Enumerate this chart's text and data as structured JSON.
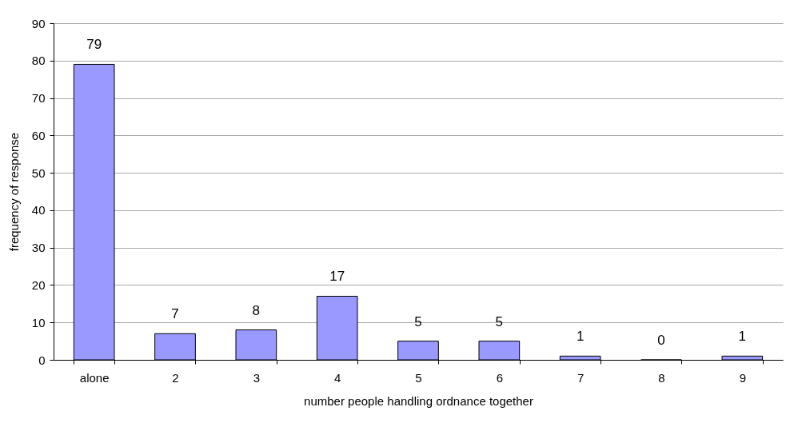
{
  "chart_data": {
    "type": "bar",
    "xlabel": "number people handling ordnance together",
    "ylabel": "frequency of response",
    "categories": [
      "alone",
      "2",
      "3",
      "4",
      "5",
      "6",
      "7",
      "8",
      "9"
    ],
    "values": [
      79,
      7,
      8,
      17,
      5,
      5,
      1,
      0,
      1
    ],
    "color": "#9999ff",
    "ylim": [
      0,
      90
    ],
    "yticks": [
      0,
      10,
      20,
      30,
      40,
      50,
      60,
      70,
      80,
      90
    ],
    "grid": "y",
    "data_labels": true
  }
}
